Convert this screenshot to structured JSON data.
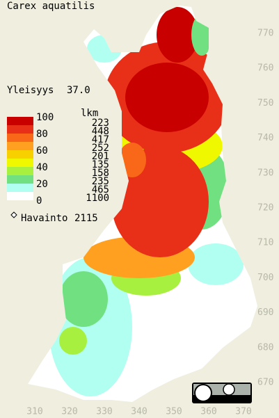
{
  "title": "Carex aquatilis",
  "frequency": {
    "label": "Yleisyys",
    "value": "37.0"
  },
  "legend": {
    "scale": [
      "100",
      "80",
      "60",
      "40",
      "20",
      "0"
    ],
    "count_header": "lkm",
    "counts": [
      223,
      448,
      417,
      252,
      201,
      135,
      158,
      235,
      465,
      1100
    ],
    "colors": [
      "#c80000",
      "#e83018",
      "#f86818",
      "#ffa020",
      "#f8d000",
      "#f0f800",
      "#a8f040",
      "#70e080",
      "#b0fff0",
      "#ffffff"
    ]
  },
  "observations": {
    "label": "Havainto",
    "count": 2115
  },
  "y_axis": [
    "770",
    "760",
    "750",
    "740",
    "730",
    "720",
    "710",
    "700",
    "690",
    "680",
    "670"
  ],
  "x_axis": [
    "310",
    "320",
    "330",
    "340",
    "350",
    "360",
    "370"
  ]
}
